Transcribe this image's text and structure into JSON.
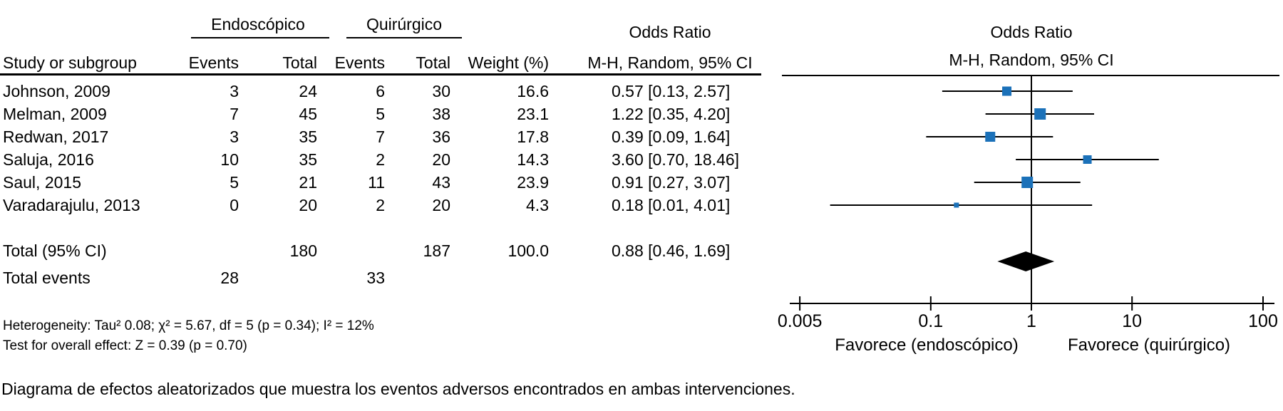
{
  "table": {
    "study_col_header": "Study or subgroup",
    "group1": "Endoscópico",
    "group2": "Quirúrgico",
    "col_events1": "Events",
    "col_total1": "Total",
    "col_events2": "Events",
    "col_total2": "Total",
    "col_weight": "Weight (%)",
    "or_header_line1": "Odds Ratio",
    "or_header_line2": "M-H, Random, 95% CI",
    "total_row": {
      "label": "Total (95% CI)",
      "total1": "180",
      "total2": "187",
      "weight": "100.0",
      "or_text": "0.88 [0.46, 1.69]"
    },
    "total_events_row": {
      "label": "Total events",
      "events1": "28",
      "events2": "33"
    },
    "heterogeneity": "Heterogeneity: Tau² 0.08; χ² = 5.67, df = 5 (p = 0.34); I² = 12%",
    "overall_effect": "Test for overall effect: Z = 0.39 (p = 0.70)"
  },
  "plot": {
    "header_line1": "Odds Ratio",
    "header_line2": "M-H, Random, 95% CI",
    "favors_left": "Favorece (endoscópico)",
    "favors_right": "Favorece (quirúrgico)",
    "marker_color": "#1b71b9",
    "diamond_color": "#000000",
    "line_color": "#000000"
  },
  "caption": "Diagrama de efectos aleatorizados que muestra los eventos adversos encontrados en ambas intervenciones.",
  "chart_data": {
    "type": "forest",
    "x_scale": "log",
    "x_ticks": [
      0.005,
      0.1,
      1,
      10,
      100
    ],
    "x_axis_range": [
      0.005,
      200
    ],
    "effect_measure": "Odds Ratio, M-H, Random, 95% CI",
    "studies": [
      {
        "label": "Johnson, 2009",
        "events1": 3,
        "total1": 24,
        "events2": 6,
        "total2": 30,
        "weight": 16.6,
        "or": 0.57,
        "ci_low": 0.13,
        "ci_high": 2.57,
        "or_text": "0.57 [0.13, 2.57]"
      },
      {
        "label": "Melman, 2009",
        "events1": 7,
        "total1": 45,
        "events2": 5,
        "total2": 38,
        "weight": 23.1,
        "or": 1.22,
        "ci_low": 0.35,
        "ci_high": 4.2,
        "or_text": "1.22 [0.35, 4.20]"
      },
      {
        "label": "Redwan, 2017",
        "events1": 3,
        "total1": 35,
        "events2": 7,
        "total2": 36,
        "weight": 17.8,
        "or": 0.39,
        "ci_low": 0.09,
        "ci_high": 1.64,
        "or_text": "0.39 [0.09, 1.64]"
      },
      {
        "label": "Saluja, 2016",
        "events1": 10,
        "total1": 35,
        "events2": 2,
        "total2": 20,
        "weight": 14.3,
        "or": 3.6,
        "ci_low": 0.7,
        "ci_high": 18.46,
        "or_text": "3.60 [0.70, 18.46]"
      },
      {
        "label": "Saul, 2015",
        "events1": 5,
        "total1": 21,
        "events2": 11,
        "total2": 43,
        "weight": 23.9,
        "or": 0.91,
        "ci_low": 0.27,
        "ci_high": 3.07,
        "or_text": "0.91 [0.27, 3.07]"
      },
      {
        "label": "Varadarajulu, 2013",
        "events1": 0,
        "total1": 20,
        "events2": 2,
        "total2": 20,
        "weight": 4.3,
        "or": 0.18,
        "ci_low": 0.01,
        "ci_high": 4.01,
        "or_text": "0.18 [0.01, 4.01]"
      }
    ],
    "total": {
      "or": 0.88,
      "ci_low": 0.46,
      "ci_high": 1.69
    }
  }
}
